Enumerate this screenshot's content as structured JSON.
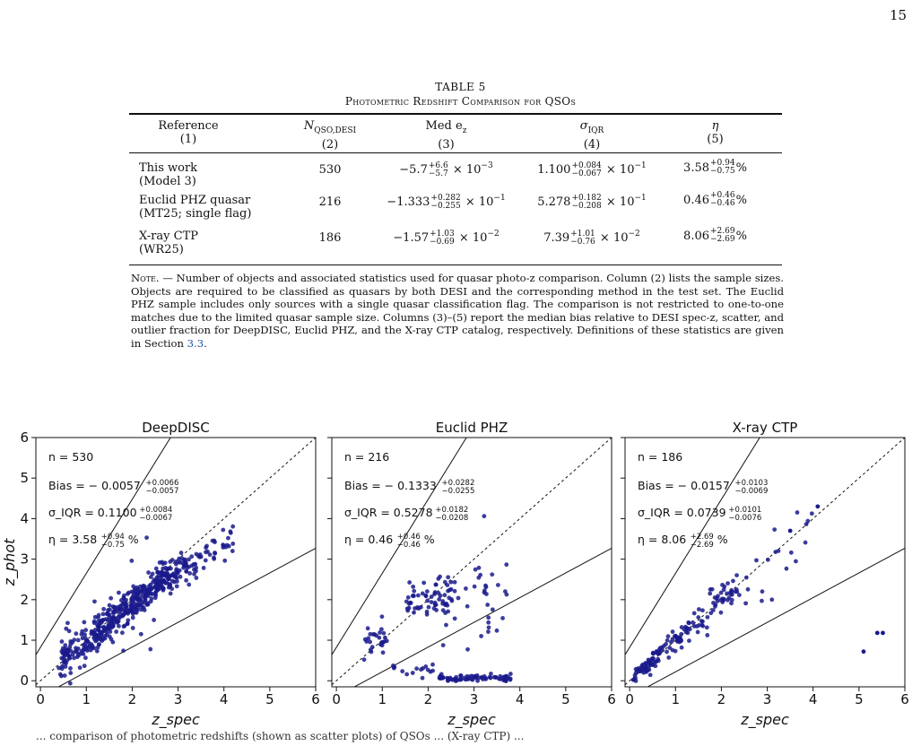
{
  "page": {
    "number": "15"
  },
  "table": {
    "label": "TABLE 5",
    "title": "Photometric Redshift Comparison for QSOs",
    "headers": [
      {
        "name": "Reference",
        "num": "(1)"
      },
      {
        "name": "N",
        "sub": "QSO,DESI",
        "num": "(2)"
      },
      {
        "name": "Med e",
        "sub": "z",
        "num": "(3)"
      },
      {
        "name": "σ",
        "sub": "IQR",
        "num": "(4)"
      },
      {
        "name": "η",
        "num": "(5)"
      }
    ],
    "rows": [
      {
        "ref": "This work",
        "ref2": "(Model 3)",
        "n": "530",
        "med": {
          "base": "−5.7",
          "up": "+6.6",
          "lo": "−5.7",
          "exp": "× 10",
          "pow": "−3"
        },
        "sig": {
          "base": "1.100",
          "up": "+0.084",
          "lo": "−0.067",
          "exp": "× 10",
          "pow": "−1"
        },
        "eta": {
          "base": "3.58",
          "up": "+0.94",
          "lo": "−0.75",
          "unit": "%"
        }
      },
      {
        "ref": "Euclid PHZ quasar",
        "ref2": "(MT25; single flag)",
        "n": "216",
        "med": {
          "base": "−1.333",
          "up": "+0.282",
          "lo": "−0.255",
          "exp": "× 10",
          "pow": "−1"
        },
        "sig": {
          "base": "5.278",
          "up": "+0.182",
          "lo": "−0.208",
          "exp": "× 10",
          "pow": "−1"
        },
        "eta": {
          "base": "0.46",
          "up": "+0.46",
          "lo": "−0.46",
          "unit": "%"
        }
      },
      {
        "ref": "X-ray CTP",
        "ref2": "(WR25)",
        "n": "186",
        "med": {
          "base": "−1.57",
          "up": "+1.03",
          "lo": "−0.69",
          "exp": "× 10",
          "pow": "−2"
        },
        "sig": {
          "base": "7.39",
          "up": "+1.01",
          "lo": "−0.76",
          "exp": "× 10",
          "pow": "−2"
        },
        "eta": {
          "base": "8.06",
          "up": "+2.69",
          "lo": "−2.69",
          "unit": "%"
        }
      }
    ],
    "note": {
      "lead": "Note.",
      "p1": " — Number of objects and associated statistics used for quasar photo-z comparison. Column (2) lists the sample sizes. Objects are required to be classified as quasars by both DESI and the corresponding method in the test set. The Euclid PHZ sample includes only sources with a single quasar classification flag. The comparison is not restricted to one-to-one matches due to the limited quasar sample size. Columns (3)–(5) report the median bias relative to DESI spec-z, scatter, and outlier fraction for DeepDISC, Euclid PHZ, and the X-ray CTP catalog, respectively. Definitions of these statistics are given in Section ",
      "ref": "3.3",
      "end": "."
    }
  },
  "colors": {
    "points": "#1a1a8c",
    "link": "#1f4fa8"
  },
  "bottom_text": "... comparison of photometric redshifts (shown as scatter plots) of QSOs ... (X-ray CTP) ...",
  "chart_data": [
    {
      "type": "scatter",
      "title": "DeepDISC",
      "xlabel": "z_spec",
      "ylabel": "z_phot",
      "xlim": [
        -0.1,
        6
      ],
      "ylim": [
        -0.15,
        6
      ],
      "xticks": [
        0,
        1,
        2,
        3,
        4,
        5,
        6
      ],
      "yticks": [
        0,
        1,
        2,
        3,
        4,
        5,
        6
      ],
      "annotations": [
        "n = 530",
        "Bias = − 0.0057",
        "σ_IQR = 0.1100",
        "η = 3.58"
      ],
      "annotation_errors": [
        [
          "+0.0066",
          "−0.0057"
        ],
        [
          "+0.0084",
          "−0.0067"
        ],
        [
          "+0.94",
          "−0.75"
        ]
      ],
      "lines": [
        "y = x",
        "y = x + 0.15(1+x)",
        "y = x − 0.15(1+x)"
      ],
      "n_points": 530,
      "seed": 11,
      "clusters": [
        {
          "frac": 0.55,
          "xmin": 0.4,
          "xmax": 3.2,
          "slope": 0.88,
          "intercept": 0.12,
          "scatter": 0.22
        },
        {
          "frac": 0.25,
          "xmin": 1.2,
          "xmax": 2.8,
          "slope": 0.85,
          "intercept": 0.2,
          "scatter": 0.18
        },
        {
          "frac": 0.12,
          "xmin": 2.8,
          "xmax": 4.2,
          "slope": 0.75,
          "intercept": 0.4,
          "scatter": 0.2
        },
        {
          "frac": 0.08,
          "xmin": 0.5,
          "xmax": 2.5,
          "slope": 0.9,
          "intercept": 0.0,
          "scatter": 0.55
        }
      ]
    },
    {
      "type": "scatter",
      "title": "Euclid PHZ",
      "xlabel": "z_spec",
      "ylabel": "",
      "xlim": [
        -0.1,
        6
      ],
      "ylim": [
        -0.15,
        6
      ],
      "xticks": [
        0,
        1,
        2,
        3,
        4,
        5,
        6
      ],
      "yticks": [
        0,
        1,
        2,
        3,
        4,
        5,
        6
      ],
      "annotations": [
        "n = 216",
        "Bias = − 0.1333",
        "σ_IQR = 0.5278",
        "η = 0.46"
      ],
      "annotation_errors": [
        [
          "+0.0282",
          "−0.0255"
        ],
        [
          "+0.0182",
          "−0.0208"
        ],
        [
          "+0.46",
          "−0.46"
        ]
      ],
      "lines": [
        "y = x",
        "y = x + 0.15(1+x)",
        "y = x − 0.15(1+x)"
      ],
      "n_points": 216,
      "seed": 23,
      "clusters": [
        {
          "frac": 0.35,
          "xmin": 2.2,
          "xmax": 3.8,
          "flat": 0.08,
          "scatter": 0.04
        },
        {
          "frac": 0.28,
          "xmin": 1.5,
          "xmax": 2.6,
          "slope": 0.05,
          "intercept": 1.9,
          "scatter": 0.22
        },
        {
          "frac": 0.12,
          "xmin": 0.6,
          "xmax": 1.1,
          "slope": 0.4,
          "intercept": 0.7,
          "scatter": 0.2
        },
        {
          "frac": 0.12,
          "xmin": 2.3,
          "xmax": 3.5,
          "slope": 0.2,
          "intercept": 1.6,
          "scatter": 0.7
        },
        {
          "frac": 0.07,
          "xmin": 1.1,
          "xmax": 2.2,
          "flat": 0.28,
          "scatter": 0.12
        },
        {
          "frac": 0.06,
          "xmin": 3.0,
          "xmax": 3.8,
          "slope": 0.0,
          "intercept": 2.3,
          "scatter": 0.3
        }
      ]
    },
    {
      "type": "scatter",
      "title": "X-ray CTP",
      "xlabel": "z_spec",
      "ylabel": "",
      "xlim": [
        -0.1,
        6
      ],
      "ylim": [
        -0.15,
        6
      ],
      "xticks": [
        0,
        1,
        2,
        3,
        4,
        5,
        6
      ],
      "yticks": [
        0,
        1,
        2,
        3,
        4,
        5,
        6
      ],
      "annotations": [
        "n = 186",
        "Bias = − 0.0157",
        "σ_IQR = 0.0739",
        "η = 8.06"
      ],
      "annotation_errors": [
        [
          "+0.0103",
          "−0.0069"
        ],
        [
          "+0.0101",
          "−0.0076"
        ],
        [
          "+2.69",
          "−2.69"
        ]
      ],
      "lines": [
        "y = x",
        "y = x + 0.15(1+x)",
        "y = x − 0.15(1+x)"
      ],
      "n_points": 186,
      "seed": 37,
      "clusters": [
        {
          "frac": 0.55,
          "xmin": 0.05,
          "xmax": 1.3,
          "slope": 0.98,
          "intercept": 0.0,
          "scatter": 0.12
        },
        {
          "frac": 0.3,
          "xmin": 1.3,
          "xmax": 2.4,
          "slope": 0.95,
          "intercept": 0.05,
          "scatter": 0.25
        },
        {
          "frac": 0.1,
          "xmin": 2.4,
          "xmax": 4.1,
          "slope": 0.92,
          "intercept": 0.1,
          "scatter": 0.4
        }
      ],
      "extra_points": [
        [
          5.1,
          0.72
        ],
        [
          5.4,
          1.18
        ],
        [
          5.52,
          1.18
        ],
        [
          4.1,
          4.3
        ],
        [
          3.5,
          3.7
        ]
      ]
    }
  ]
}
